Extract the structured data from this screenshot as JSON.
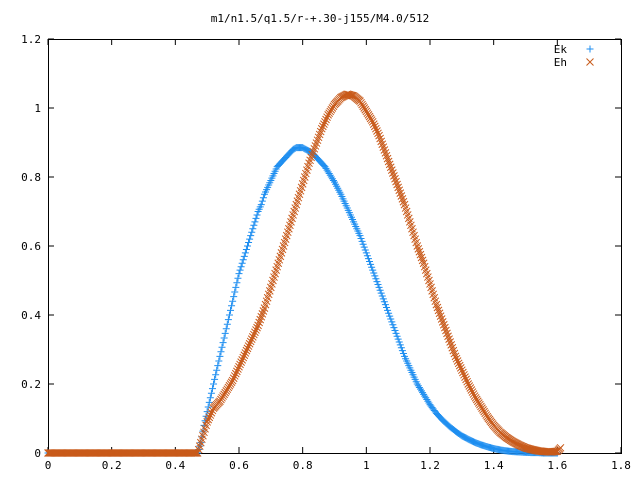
{
  "chart_data": {
    "type": "scatter",
    "title": "m1/n1.5/q1.5/r-+.30-j155/M4.0/512",
    "xlabel": "",
    "ylabel": "",
    "xlim": [
      0,
      1.8
    ],
    "ylim": [
      0,
      1.2
    ],
    "x_ticks": [
      "0",
      "0.2",
      "0.4",
      "0.6",
      "0.8",
      "1",
      "1.2",
      "1.4",
      "1.6",
      "1.8"
    ],
    "y_ticks": [
      "0",
      "0.2",
      "0.4",
      "0.6",
      "0.8",
      "1",
      "1.2"
    ],
    "grid": false,
    "legend_position": "top-right",
    "series": [
      {
        "name": "Ek",
        "marker": "plus",
        "color": "#1e8ef0",
        "x": [
          0.0,
          0.1,
          0.2,
          0.3,
          0.4,
          0.47,
          0.48,
          0.49,
          0.5,
          0.51,
          0.52,
          0.53,
          0.54,
          0.55,
          0.56,
          0.57,
          0.58,
          0.59,
          0.6,
          0.61,
          0.62,
          0.63,
          0.64,
          0.65,
          0.66,
          0.67,
          0.68,
          0.69,
          0.7,
          0.71,
          0.72,
          0.73,
          0.74,
          0.75,
          0.76,
          0.77,
          0.78,
          0.79,
          0.8,
          0.81,
          0.82,
          0.83,
          0.84,
          0.85,
          0.86,
          0.87,
          0.88,
          0.89,
          0.9,
          0.92,
          0.94,
          0.96,
          0.98,
          1.0,
          1.02,
          1.04,
          1.06,
          1.08,
          1.1,
          1.12,
          1.14,
          1.16,
          1.18,
          1.2,
          1.22,
          1.24,
          1.26,
          1.28,
          1.3,
          1.32,
          1.34,
          1.36,
          1.38,
          1.4,
          1.42,
          1.44,
          1.46,
          1.48,
          1.5,
          1.52,
          1.54,
          1.56,
          1.58,
          1.6
        ],
        "y": [
          0.0,
          0.0,
          0.0,
          0.0,
          0.0,
          0.0,
          0.03,
          0.08,
          0.12,
          0.16,
          0.2,
          0.24,
          0.28,
          0.32,
          0.36,
          0.4,
          0.44,
          0.48,
          0.52,
          0.55,
          0.58,
          0.61,
          0.64,
          0.67,
          0.7,
          0.72,
          0.75,
          0.77,
          0.79,
          0.81,
          0.83,
          0.84,
          0.85,
          0.86,
          0.87,
          0.88,
          0.885,
          0.885,
          0.885,
          0.88,
          0.875,
          0.87,
          0.86,
          0.85,
          0.84,
          0.83,
          0.815,
          0.8,
          0.785,
          0.75,
          0.71,
          0.67,
          0.63,
          0.58,
          0.53,
          0.48,
          0.43,
          0.38,
          0.33,
          0.28,
          0.24,
          0.2,
          0.17,
          0.14,
          0.115,
          0.095,
          0.078,
          0.063,
          0.05,
          0.04,
          0.031,
          0.024,
          0.018,
          0.013,
          0.009,
          0.006,
          0.004,
          0.003,
          0.002,
          0.001,
          0.001,
          0.0,
          0.0,
          0.0
        ]
      },
      {
        "name": "Eh",
        "marker": "cross",
        "color": "#c85a1a",
        "x": [
          0.0,
          0.1,
          0.2,
          0.3,
          0.4,
          0.47,
          0.48,
          0.49,
          0.5,
          0.51,
          0.52,
          0.54,
          0.56,
          0.58,
          0.6,
          0.62,
          0.64,
          0.66,
          0.68,
          0.7,
          0.72,
          0.74,
          0.76,
          0.78,
          0.8,
          0.82,
          0.84,
          0.86,
          0.88,
          0.9,
          0.92,
          0.94,
          0.96,
          0.98,
          1.0,
          1.02,
          1.04,
          1.06,
          1.08,
          1.1,
          1.12,
          1.14,
          1.16,
          1.18,
          1.2,
          1.22,
          1.24,
          1.26,
          1.28,
          1.3,
          1.32,
          1.34,
          1.36,
          1.38,
          1.4,
          1.42,
          1.44,
          1.46,
          1.48,
          1.5,
          1.52,
          1.54,
          1.56,
          1.58,
          1.6,
          1.61
        ],
        "y": [
          0.0,
          0.0,
          0.0,
          0.0,
          0.0,
          0.0,
          0.03,
          0.06,
          0.09,
          0.11,
          0.13,
          0.15,
          0.18,
          0.21,
          0.25,
          0.29,
          0.33,
          0.37,
          0.42,
          0.48,
          0.54,
          0.6,
          0.66,
          0.72,
          0.78,
          0.84,
          0.89,
          0.94,
          0.98,
          1.01,
          1.03,
          1.04,
          1.035,
          1.02,
          0.99,
          0.96,
          0.92,
          0.87,
          0.82,
          0.77,
          0.72,
          0.66,
          0.6,
          0.55,
          0.49,
          0.43,
          0.38,
          0.33,
          0.28,
          0.24,
          0.2,
          0.165,
          0.135,
          0.105,
          0.08,
          0.06,
          0.045,
          0.033,
          0.023,
          0.015,
          0.01,
          0.006,
          0.004,
          0.003,
          0.005,
          0.015
        ]
      }
    ]
  }
}
